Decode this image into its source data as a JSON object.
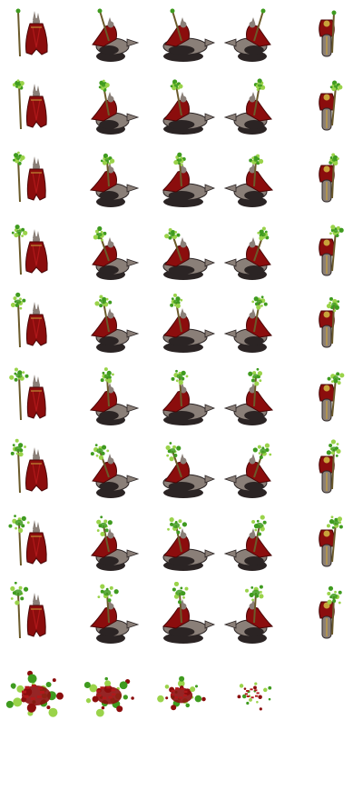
{
  "sheet": {
    "columns": 5,
    "animation_rows": 9,
    "death_frames": 4,
    "directions": [
      "south",
      "south-east",
      "east",
      "north-east",
      "north"
    ]
  },
  "colors": {
    "background": "#ffffff",
    "robe": "#8b0d0d",
    "robe_dark": "#4a0606",
    "robe_light": "#b0181a",
    "wolf_fur": "#8a7f78",
    "wolf_dark": "#2b2424",
    "staff": "#6b5a2a",
    "magic": "#3f9b1f",
    "magic_light": "#9ad34a",
    "gold": "#c9a33a"
  },
  "icons": {
    "rider": "red-robed-mage-icon",
    "staff": "green-crystal-staff-icon",
    "mount": "dire-wolf-icon",
    "death": "gore-pile-icon"
  }
}
